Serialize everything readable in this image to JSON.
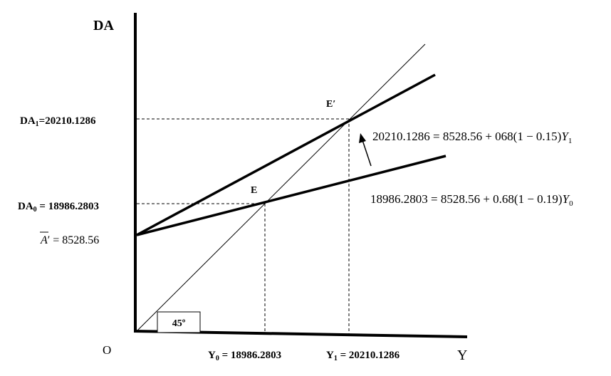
{
  "axes": {
    "y_axis_label": "DA",
    "x_axis_label": "Y",
    "origin_label": "O"
  },
  "levels": {
    "da1_label": "DA",
    "da1_sub": "1",
    "da1_value": "=20210.1286",
    "da0_label": "DA",
    "da0_sub": "0",
    "da0_value": " = 18986.2803",
    "a_label": "A",
    "a_prime": "′",
    "a_value": " = 8528.56"
  },
  "x_values": {
    "y0_label": "Y",
    "y0_sub": "0",
    "y0_value": " = 18986.2803",
    "y1_label": "Y",
    "y1_sub": "1",
    "y1_value": " = 20210.1286"
  },
  "points": {
    "e_label": "E",
    "e_prime_label": "E′"
  },
  "equations": {
    "upper_eq": "20210.1286 = 8528.56 + 068(1 − 0.15)",
    "upper_var": "Y",
    "upper_sub": "1",
    "lower_eq": "18986.2803 = 8528.56 + 0.68(1 − 0.19)",
    "lower_var": "Y",
    "lower_sub": "0"
  },
  "angle_label": "45º"
}
